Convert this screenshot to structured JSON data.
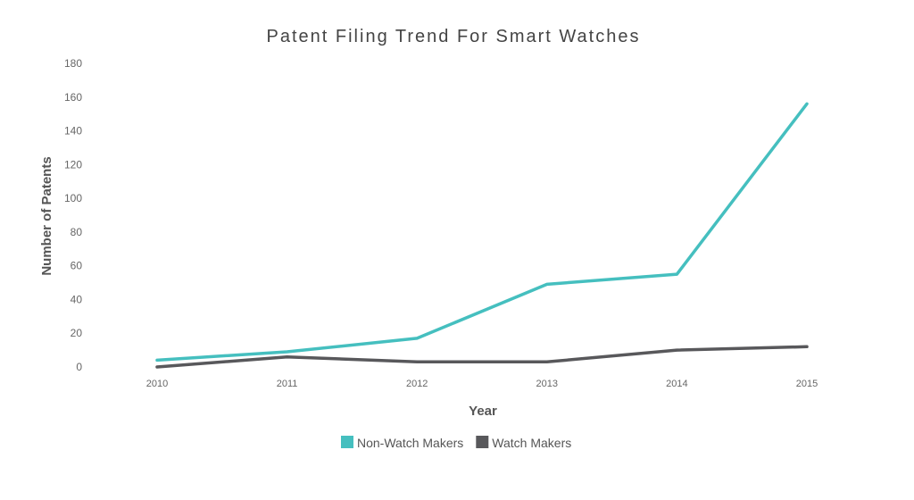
{
  "chart_data": {
    "type": "line",
    "title": "Patent Filing Trend For Smart Watches",
    "xlabel": "Year",
    "ylabel": "Number of Patents",
    "categories": [
      "2010",
      "2011",
      "2012",
      "2013",
      "2014",
      "2015"
    ],
    "yticks": [
      0,
      20,
      40,
      60,
      80,
      100,
      120,
      140,
      160,
      180
    ],
    "ylim": [
      0,
      180
    ],
    "grid": false,
    "legend_position": "bottom-center",
    "series": [
      {
        "name": "Non-Watch Makers",
        "color": "#45bfbf",
        "values": [
          4,
          9,
          17,
          49,
          55,
          156
        ]
      },
      {
        "name": "Watch Makers",
        "color": "#58585b",
        "values": [
          0,
          6,
          3,
          3,
          10,
          12
        ]
      }
    ]
  }
}
